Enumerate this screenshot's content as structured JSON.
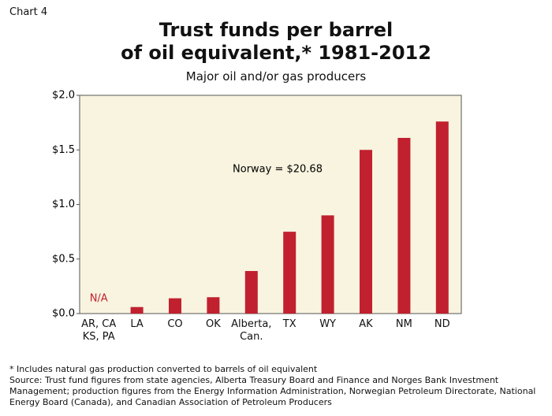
{
  "chart_data": {
    "type": "bar",
    "chart_label": "Chart 4",
    "title": "Trust funds per barrel\nof oil equivalent,* 1981-2012",
    "subtitle": "Major oil and/or gas producers",
    "categories": [
      "AR, CA\nKS, PA",
      "LA",
      "CO",
      "OK",
      "Alberta,\nCan.",
      "TX",
      "WY",
      "AK",
      "NM",
      "ND"
    ],
    "values": [
      null,
      0.06,
      0.14,
      0.15,
      0.39,
      0.75,
      0.9,
      1.5,
      1.61,
      1.76
    ],
    "value_labels": [
      "N/A",
      null,
      null,
      null,
      null,
      null,
      null,
      null,
      null,
      null
    ],
    "color": "#c1202f",
    "ylim": [
      0,
      2.0
    ],
    "yticks": [
      {
        "value": 0,
        "label": "$0.0"
      },
      {
        "value": 0.5,
        "label": "$0.5"
      },
      {
        "value": 1.0,
        "label": "$1.0"
      },
      {
        "value": 1.5,
        "label": "$1.5"
      },
      {
        "value": 2.0,
        "label": "$2.0"
      }
    ],
    "annotation": "Norway = $20.68",
    "footnote": "* Includes natural gas production converted to barrels of oil equivalent",
    "source": "Source: Trust fund figures from state agencies, Alberta Treasury Board and Finance and Norges Bank Investment Management; production figures from the Energy Information Administration, Norwegian Petroleum Directorate, National Energy Board (Canada), and Canadian Association of Petroleum Producers"
  }
}
